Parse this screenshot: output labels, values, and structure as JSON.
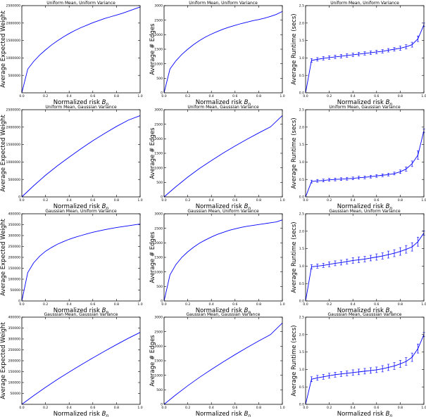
{
  "x_label": "Normalized risk ",
  "x_label_symbol": "B",
  "x_label_subscript": "n",
  "panel_titles": [
    "Uniform Mean, Uniform Variance",
    "Uniform Mean, Gaussian Variance",
    "Gaussian Mean, Uniform Variance",
    "Gaussian Mean, Gaussian Variance"
  ],
  "chart_data": [
    {
      "type": "line",
      "title": "Uniform Mean, Uniform Variance",
      "xlabel": "Normalized risk Bn",
      "ylabel": "Average Expected Weight",
      "xlim": [
        0,
        1
      ],
      "ylim": [
        0,
        2500000
      ],
      "xticks": [
        "0.0",
        "0.2",
        "0.4",
        "0.6",
        "0.8",
        "1.0"
      ],
      "yticks": [
        "500000",
        "1000000",
        "1500000",
        "2000000",
        "2500000"
      ],
      "ytick_values": [
        500000,
        1000000,
        1500000,
        2000000,
        2500000
      ],
      "series": [
        {
          "x": [
            0,
            0.05,
            0.1,
            0.15,
            0.2,
            0.25,
            0.3,
            0.35,
            0.4,
            0.45,
            0.5,
            0.55,
            0.6,
            0.65,
            0.7,
            0.75,
            0.8,
            0.85,
            0.9,
            0.95,
            1.0
          ],
          "y": [
            0,
            680000,
            900000,
            1080000,
            1230000,
            1370000,
            1490000,
            1600000,
            1700000,
            1790000,
            1870000,
            1940000,
            2010000,
            2070000,
            2130000,
            2180000,
            2230000,
            2280000,
            2340000,
            2400000,
            2460000
          ]
        }
      ]
    },
    {
      "type": "line",
      "title": "Uniform Mean, Uniform Variance",
      "xlabel": "Normalized risk Bn",
      "ylabel": "Average # Edges",
      "xlim": [
        0,
        1
      ],
      "ylim": [
        0,
        3000
      ],
      "xticks": [
        "0.0",
        "0.2",
        "0.4",
        "0.6",
        "0.8",
        "1.0"
      ],
      "yticks": [
        "0",
        "500",
        "1000",
        "1500",
        "2000",
        "2500",
        "3000"
      ],
      "ytick_values": [
        0,
        500,
        1000,
        1500,
        2000,
        2500,
        3000
      ],
      "series": [
        {
          "x": [
            0,
            0.05,
            0.1,
            0.15,
            0.2,
            0.25,
            0.3,
            0.35,
            0.4,
            0.45,
            0.5,
            0.55,
            0.6,
            0.65,
            0.7,
            0.75,
            0.8,
            0.85,
            0.9,
            0.95,
            1.0
          ],
          "y": [
            0,
            820,
            1100,
            1320,
            1500,
            1660,
            1800,
            1920,
            2020,
            2110,
            2190,
            2260,
            2320,
            2380,
            2430,
            2480,
            2520,
            2570,
            2630,
            2700,
            2800
          ]
        }
      ]
    },
    {
      "type": "line",
      "title": "Uniform Mean, Uniform Variance",
      "xlabel": "Normalized risk Bn",
      "ylabel": "Average Runtime (secs)",
      "xlim": [
        0,
        1
      ],
      "ylim": [
        0,
        2.5
      ],
      "xticks": [
        "0.0",
        "0.2",
        "0.4",
        "0.6",
        "0.8",
        "1.0"
      ],
      "yticks": [
        "0.0",
        "0.5",
        "1.0",
        "1.5",
        "2.0",
        "2.5"
      ],
      "ytick_values": [
        0,
        0.5,
        1.0,
        1.5,
        2.0,
        2.5
      ],
      "series": [
        {
          "x": [
            0,
            0.05,
            0.1,
            0.15,
            0.2,
            0.25,
            0.3,
            0.35,
            0.4,
            0.45,
            0.5,
            0.55,
            0.6,
            0.65,
            0.7,
            0.75,
            0.8,
            0.85,
            0.9,
            0.95,
            1.0
          ],
          "y": [
            0,
            0.93,
            0.96,
            0.99,
            1.01,
            1.03,
            1.05,
            1.07,
            1.09,
            1.11,
            1.13,
            1.15,
            1.17,
            1.19,
            1.22,
            1.25,
            1.28,
            1.32,
            1.38,
            1.55,
            1.95
          ],
          "err": [
            0,
            0.05,
            0.05,
            0.05,
            0.05,
            0.05,
            0.05,
            0.05,
            0.05,
            0.05,
            0.05,
            0.05,
            0.05,
            0.05,
            0.05,
            0.05,
            0.06,
            0.06,
            0.07,
            0.08,
            0.05
          ]
        }
      ]
    },
    {
      "type": "line",
      "title": "Uniform Mean, Gaussian Variance",
      "xlabel": "Normalized risk Bn",
      "ylabel": "Average Expected Weight",
      "xlim": [
        0,
        1
      ],
      "ylim": [
        0,
        2500000
      ],
      "xticks": [
        "0.0",
        "0.2",
        "0.4",
        "0.6",
        "0.8",
        "1.0"
      ],
      "yticks": [
        "0",
        "500000",
        "1000000",
        "1500000",
        "2000000",
        "2500000"
      ],
      "ytick_values": [
        0,
        500000,
        1000000,
        1500000,
        2000000,
        2500000
      ],
      "series": [
        {
          "x": [
            0,
            0.1,
            0.2,
            0.3,
            0.4,
            0.5,
            0.6,
            0.7,
            0.8,
            0.9,
            1.0
          ],
          "y": [
            0,
            320000,
            620000,
            890000,
            1140000,
            1380000,
            1610000,
            1820000,
            2020000,
            2200000,
            2330000
          ]
        }
      ]
    },
    {
      "type": "line",
      "title": "Uniform Mean, Gaussian Variance",
      "xlabel": "Normalized risk Bn",
      "ylabel": "Average # Edges",
      "xlim": [
        0,
        1
      ],
      "ylim": [
        0,
        3000
      ],
      "xticks": [
        "0.0",
        "0.2",
        "0.4",
        "0.6",
        "0.8",
        "1.0"
      ],
      "yticks": [
        "0",
        "500",
        "1000",
        "1500",
        "2000",
        "2500",
        "3000"
      ],
      "ytick_values": [
        0,
        500,
        1000,
        1500,
        2000,
        2500,
        3000
      ],
      "series": [
        {
          "x": [
            0,
            0.1,
            0.2,
            0.3,
            0.4,
            0.5,
            0.6,
            0.7,
            0.8,
            0.9,
            1.0
          ],
          "y": [
            0,
            350,
            680,
            980,
            1250,
            1510,
            1750,
            1980,
            2200,
            2410,
            2800
          ]
        }
      ]
    },
    {
      "type": "line",
      "title": "Uniform Mean, Gaussian Variance",
      "xlabel": "Normalized risk Bn",
      "ylabel": "Average Runtime (secs)",
      "xlim": [
        0,
        1
      ],
      "ylim": [
        0,
        2.5
      ],
      "xticks": [
        "0.0",
        "0.2",
        "0.4",
        "0.6",
        "0.8",
        "1.0"
      ],
      "yticks": [
        "0.0",
        "0.5",
        "1.0",
        "1.5",
        "2.0",
        "2.5"
      ],
      "ytick_values": [
        0,
        0.5,
        1.0,
        1.5,
        2.0,
        2.5
      ],
      "series": [
        {
          "x": [
            0,
            0.05,
            0.1,
            0.15,
            0.2,
            0.25,
            0.3,
            0.35,
            0.4,
            0.45,
            0.5,
            0.55,
            0.6,
            0.65,
            0.7,
            0.75,
            0.8,
            0.85,
            0.9,
            0.95,
            1.0
          ],
          "y": [
            0,
            0.44,
            0.46,
            0.47,
            0.49,
            0.5,
            0.51,
            0.52,
            0.53,
            0.55,
            0.56,
            0.58,
            0.6,
            0.62,
            0.64,
            0.67,
            0.72,
            0.8,
            0.95,
            1.2,
            1.9
          ],
          "err": [
            0,
            0.04,
            0.04,
            0.04,
            0.04,
            0.04,
            0.04,
            0.04,
            0.04,
            0.04,
            0.04,
            0.04,
            0.04,
            0.04,
            0.04,
            0.04,
            0.05,
            0.06,
            0.08,
            0.12,
            0.05
          ]
        }
      ]
    },
    {
      "type": "line",
      "title": "Gaussian Mean, Uniform Variance",
      "xlabel": "Normalized risk Bn",
      "ylabel": "Average Expected Weight",
      "xlim": [
        0,
        1
      ],
      "ylim": [
        0,
        400000
      ],
      "xticks": [
        "0.0",
        "0.2",
        "0.4",
        "0.6",
        "0.8",
        "1.0"
      ],
      "yticks": [
        "0",
        "50000",
        "100000",
        "150000",
        "200000",
        "250000",
        "300000",
        "350000",
        "400000"
      ],
      "ytick_values": [
        0,
        50000,
        100000,
        150000,
        200000,
        250000,
        300000,
        350000,
        400000
      ],
      "series": [
        {
          "x": [
            0,
            0.05,
            0.1,
            0.15,
            0.2,
            0.25,
            0.3,
            0.35,
            0.4,
            0.45,
            0.5,
            0.55,
            0.6,
            0.65,
            0.7,
            0.75,
            0.8,
            0.85,
            0.9,
            0.95,
            1.0
          ],
          "y": [
            0,
            130000,
            175000,
            205000,
            228000,
            245000,
            260000,
            272000,
            283000,
            292000,
            300000,
            308000,
            315000,
            321000,
            327000,
            332000,
            337000,
            341000,
            345000,
            349000,
            353000
          ]
        }
      ]
    },
    {
      "type": "line",
      "title": "Gaussian Mean, Uniform Variance",
      "xlabel": "Normalized risk Bn",
      "ylabel": "Average # Edges",
      "xlim": [
        0,
        1
      ],
      "ylim": [
        0,
        3000
      ],
      "xticks": [
        "0.0",
        "0.2",
        "0.4",
        "0.6",
        "0.8",
        "1.0"
      ],
      "yticks": [
        "0",
        "500",
        "1000",
        "1500",
        "2000",
        "2500",
        "3000"
      ],
      "ytick_values": [
        0,
        500,
        1000,
        1500,
        2000,
        2500,
        3000
      ],
      "series": [
        {
          "x": [
            0,
            0.05,
            0.1,
            0.15,
            0.2,
            0.25,
            0.3,
            0.35,
            0.4,
            0.45,
            0.5,
            0.55,
            0.6,
            0.65,
            0.7,
            0.75,
            0.8,
            0.85,
            0.9,
            0.95,
            1.0
          ],
          "y": [
            0,
            900,
            1250,
            1500,
            1690,
            1850,
            1990,
            2100,
            2200,
            2290,
            2360,
            2430,
            2480,
            2530,
            2570,
            2600,
            2630,
            2660,
            2690,
            2720,
            2790
          ]
        }
      ]
    },
    {
      "type": "line",
      "title": "Gaussian Mean, Uniform Variance",
      "xlabel": "Normalized risk Bn",
      "ylabel": "Average Runtime (secs)",
      "xlim": [
        0,
        1
      ],
      "ylim": [
        0,
        2.5
      ],
      "xticks": [
        "0.0",
        "0.2",
        "0.4",
        "0.6",
        "0.8",
        "1.0"
      ],
      "yticks": [
        "0.0",
        "0.5",
        "1.0",
        "1.5",
        "2.0",
        "2.5"
      ],
      "ytick_values": [
        0,
        0.5,
        1.0,
        1.5,
        2.0,
        2.5
      ],
      "series": [
        {
          "x": [
            0,
            0.05,
            0.1,
            0.15,
            0.2,
            0.25,
            0.3,
            0.35,
            0.4,
            0.45,
            0.5,
            0.55,
            0.6,
            0.65,
            0.7,
            0.75,
            0.8,
            0.85,
            0.9,
            0.95,
            1.0
          ],
          "y": [
            0,
            0.98,
            1.0,
            1.02,
            1.05,
            1.08,
            1.1,
            1.13,
            1.16,
            1.18,
            1.2,
            1.23,
            1.26,
            1.29,
            1.33,
            1.37,
            1.42,
            1.48,
            1.55,
            1.7,
            1.95
          ],
          "err": [
            0,
            0.06,
            0.06,
            0.06,
            0.07,
            0.07,
            0.07,
            0.07,
            0.08,
            0.08,
            0.08,
            0.08,
            0.09,
            0.09,
            0.1,
            0.1,
            0.11,
            0.11,
            0.12,
            0.13,
            0.06
          ]
        }
      ]
    },
    {
      "type": "line",
      "title": "Gaussian Mean, Gaussian Variance",
      "xlabel": "Normalized risk Bn",
      "ylabel": "Average Expected Weight",
      "xlim": [
        0,
        1
      ],
      "ylim": [
        0,
        400000
      ],
      "xticks": [
        "0.0",
        "0.2",
        "0.4",
        "0.6",
        "0.8",
        "1.0"
      ],
      "yticks": [
        "50000",
        "100000",
        "150000",
        "200000",
        "250000",
        "300000",
        "350000",
        "400000"
      ],
      "ytick_values": [
        50000,
        100000,
        150000,
        200000,
        250000,
        300000,
        350000,
        400000
      ],
      "series": [
        {
          "x": [
            0,
            0.1,
            0.2,
            0.3,
            0.4,
            0.5,
            0.6,
            0.7,
            0.8,
            0.9,
            1.0
          ],
          "y": [
            0,
            40000,
            78000,
            114000,
            148000,
            181000,
            213000,
            244000,
            274000,
            303000,
            330000
          ]
        }
      ]
    },
    {
      "type": "line",
      "title": "Gaussian Mean, Gaussian Variance",
      "xlabel": "Normalized risk Bn",
      "ylabel": "Average # Edges",
      "xlim": [
        0,
        1
      ],
      "ylim": [
        0,
        3000
      ],
      "xticks": [
        "0.0",
        "0.2",
        "0.4",
        "0.6",
        "0.8",
        "1.0"
      ],
      "yticks": [
        "0",
        "500",
        "1000",
        "1500",
        "2000",
        "2500",
        "3000"
      ],
      "ytick_values": [
        0,
        500,
        1000,
        1500,
        2000,
        2500,
        3000
      ],
      "series": [
        {
          "x": [
            0,
            0.1,
            0.2,
            0.3,
            0.4,
            0.5,
            0.6,
            0.7,
            0.8,
            0.9,
            1.0
          ],
          "y": [
            0,
            330,
            640,
            930,
            1200,
            1460,
            1710,
            1950,
            2180,
            2400,
            2800
          ]
        }
      ]
    },
    {
      "type": "line",
      "title": "Gaussian Mean, Gaussian Variance",
      "xlabel": "Normalized risk Bn",
      "ylabel": "Average Runtime (secs)",
      "xlim": [
        0,
        1
      ],
      "ylim": [
        0,
        2.5
      ],
      "xticks": [
        "0.0",
        "0.2",
        "0.4",
        "0.6",
        "0.8",
        "1.0"
      ],
      "yticks": [
        "0.0",
        "0.5",
        "1.0",
        "1.5",
        "2.0",
        "2.5"
      ],
      "ytick_values": [
        0,
        0.5,
        1.0,
        1.5,
        2.0,
        2.5
      ],
      "series": [
        {
          "x": [
            0,
            0.05,
            0.1,
            0.15,
            0.2,
            0.25,
            0.3,
            0.35,
            0.4,
            0.45,
            0.5,
            0.55,
            0.6,
            0.65,
            0.7,
            0.75,
            0.8,
            0.85,
            0.9,
            0.95,
            1.0
          ],
          "y": [
            0,
            0.72,
            0.76,
            0.79,
            0.82,
            0.85,
            0.87,
            0.89,
            0.91,
            0.93,
            0.95,
            0.97,
            0.99,
            1.02,
            1.06,
            1.1,
            1.16,
            1.23,
            1.35,
            1.6,
            2.0
          ],
          "err": [
            0,
            0.07,
            0.07,
            0.07,
            0.07,
            0.07,
            0.07,
            0.07,
            0.08,
            0.08,
            0.08,
            0.08,
            0.08,
            0.09,
            0.09,
            0.1,
            0.1,
            0.11,
            0.12,
            0.13,
            0.06
          ]
        }
      ]
    }
  ]
}
